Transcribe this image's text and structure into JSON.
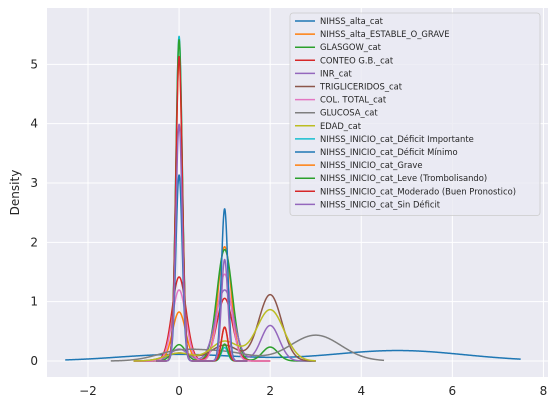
{
  "chart_data": {
    "type": "line",
    "ylabel": "Density",
    "xlabel": "",
    "title": "",
    "xlim": [
      -2.9,
      8.1
    ],
    "ylim": [
      -0.27,
      5.95
    ],
    "xticks": [
      -2,
      0,
      2,
      4,
      6,
      8
    ],
    "yticks": [
      0,
      1,
      2,
      3,
      4,
      5
    ],
    "grid": true,
    "legend_position": "top-right",
    "background_color": "#eaeaf2",
    "series": [
      {
        "name": "NIHSS_alta_cat",
        "color": "#1f77b4",
        "x_range": [
          -2.5,
          7.5
        ],
        "components": [
          {
            "w": 0.36,
            "mu": 0,
            "s": 1.3
          },
          {
            "w": 0.64,
            "mu": 4.8,
            "s": 1.45
          }
        ]
      },
      {
        "name": "NIHSS_alta_ESTABLE_O_GRAVE",
        "color": "#ff7f0e",
        "x_range": [
          -1,
          2
        ],
        "components": [
          {
            "w": 0.3,
            "mu": 0,
            "s": 0.145
          },
          {
            "w": 0.7,
            "mu": 1,
            "s": 0.145
          }
        ]
      },
      {
        "name": "GLASGOW_cat",
        "color": "#2ca02c",
        "x_range": [
          -1,
          3
        ],
        "components": [
          {
            "w": 0.1,
            "mu": 0,
            "s": 0.145
          },
          {
            "w": 0.8,
            "mu": 1,
            "s": 0.17
          },
          {
            "w": 0.1,
            "mu": 2,
            "s": 0.17
          }
        ]
      },
      {
        "name": "CONTEO G.B._cat",
        "color": "#d62728",
        "x_range": [
          -1,
          2
        ],
        "components": [
          {
            "w": 0.55,
            "mu": 0,
            "s": 0.155
          },
          {
            "w": 0.45,
            "mu": 1,
            "s": 0.17
          }
        ]
      },
      {
        "name": "INR_cat",
        "color": "#9467bd",
        "x_range": [
          -1,
          3
        ],
        "components": [
          {
            "w": 0.1,
            "mu": 0,
            "s": 0.2
          },
          {
            "w": 0.6,
            "mu": 1,
            "s": 0.2
          },
          {
            "w": 0.3,
            "mu": 2,
            "s": 0.2
          }
        ]
      },
      {
        "name": "TRIGLICERIDOS_cat",
        "color": "#8c564b",
        "x_range": [
          -1,
          3
        ],
        "components": [
          {
            "w": 0.1,
            "mu": 0,
            "s": 0.3
          },
          {
            "w": 0.2,
            "mu": 1,
            "s": 0.3
          },
          {
            "w": 0.7,
            "mu": 2,
            "s": 0.25
          }
        ]
      },
      {
        "name": "COL. TOTAL_cat",
        "color": "#e377c2",
        "x_range": [
          -1,
          2
        ],
        "components": [
          {
            "w": 0.45,
            "mu": 0,
            "s": 0.15
          },
          {
            "w": 0.55,
            "mu": 1,
            "s": 0.15
          }
        ]
      },
      {
        "name": "GLUCOSA_cat",
        "color": "#7f7f7f",
        "x_range": [
          -1.5,
          4.5
        ],
        "components": [
          {
            "w": 0.2,
            "mu": 0,
            "s": 0.5
          },
          {
            "w": 0.2,
            "mu": 1,
            "s": 0.55
          },
          {
            "w": 0.6,
            "mu": 3,
            "s": 0.55
          }
        ]
      },
      {
        "name": "EDAD_cat",
        "color": "#bcbd22",
        "x_range": [
          -1,
          3
        ],
        "components": [
          {
            "w": 0.1,
            "mu": 0,
            "s": 0.3
          },
          {
            "w": 0.25,
            "mu": 1,
            "s": 0.3
          },
          {
            "w": 0.65,
            "mu": 2,
            "s": 0.3
          }
        ]
      },
      {
        "name": "NIHSS_INICIO_cat_Déficit Importante",
        "color": "#17becf",
        "x_range": [
          -0.5,
          1.5
        ],
        "components": [
          {
            "w": 0.96,
            "mu": 0,
            "s": 0.07
          },
          {
            "w": 0.04,
            "mu": 1,
            "s": 0.07
          }
        ]
      },
      {
        "name": "NIHSS_INICIO_cat_Déficit Mínimo",
        "color": "#1f77b4",
        "x_range": [
          -0.5,
          1.5
        ],
        "components": [
          {
            "w": 0.55,
            "mu": 0,
            "s": 0.07
          },
          {
            "w": 0.45,
            "mu": 1,
            "s": 0.07
          }
        ]
      },
      {
        "name": "NIHSS_INICIO_cat_Grave",
        "color": "#ff7f0e",
        "x_range": [
          -0.5,
          1.5
        ],
        "components": [
          {
            "w": 0.9,
            "mu": 0,
            "s": 0.07
          },
          {
            "w": 0.1,
            "mu": 1,
            "s": 0.07
          }
        ]
      },
      {
        "name": "NIHSS_INICIO_cat_Leve (Trombolisando)",
        "color": "#2ca02c",
        "x_range": [
          -0.5,
          1.5
        ],
        "components": [
          {
            "w": 0.95,
            "mu": 0,
            "s": 0.07
          },
          {
            "w": 0.05,
            "mu": 1,
            "s": 0.07
          }
        ]
      },
      {
        "name": "NIHSS_INICIO_cat_Moderado (Buen Pronostico)",
        "color": "#d62728",
        "x_range": [
          -0.5,
          1.5
        ],
        "components": [
          {
            "w": 0.9,
            "mu": 0,
            "s": 0.07
          },
          {
            "w": 0.1,
            "mu": 1,
            "s": 0.07
          }
        ]
      },
      {
        "name": "NIHSS_INICIO_cat_Sin Déficit",
        "color": "#9467bd",
        "x_range": [
          -0.5,
          1.5
        ],
        "components": [
          {
            "w": 0.7,
            "mu": 0,
            "s": 0.07
          },
          {
            "w": 0.3,
            "mu": 1,
            "s": 0.07
          }
        ]
      }
    ]
  }
}
